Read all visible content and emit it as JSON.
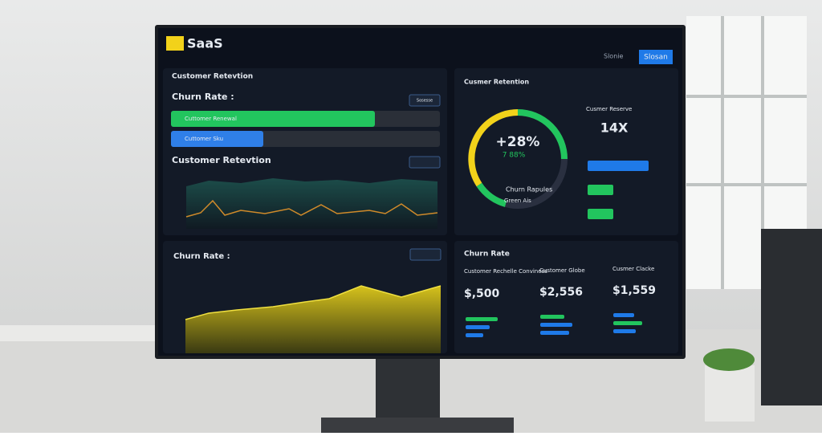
{
  "header": {
    "logo": "SaaS",
    "status": "Slonie",
    "button": "Slosan"
  },
  "panels": [
    {
      "title": "Customer Retevtion",
      "subtitle": "Churn Rate :",
      "button": "Sosesse",
      "bars": [
        "Cuttomer Renewal",
        "Cuttomer Sku"
      ],
      "chart_title": "Customer Retevtion"
    },
    {
      "title": "Churn Rate :"
    },
    {
      "title": "Cusmer Retention",
      "donut_value": "+28%",
      "donut_sub": "7 88%",
      "legend": [
        "Churn Rapules",
        "Green Ais"
      ],
      "side_label": "Cusmer Reserve",
      "side_value": "14X"
    },
    {
      "title": "Churn Rate",
      "columns": [
        {
          "label": "Customer Rechelle Conviness",
          "value": "$,500"
        },
        {
          "label": "Customer Globe",
          "value": "$2,556"
        },
        {
          "label": "Cusmer Clacke",
          "value": "$1,559"
        }
      ]
    }
  ]
}
